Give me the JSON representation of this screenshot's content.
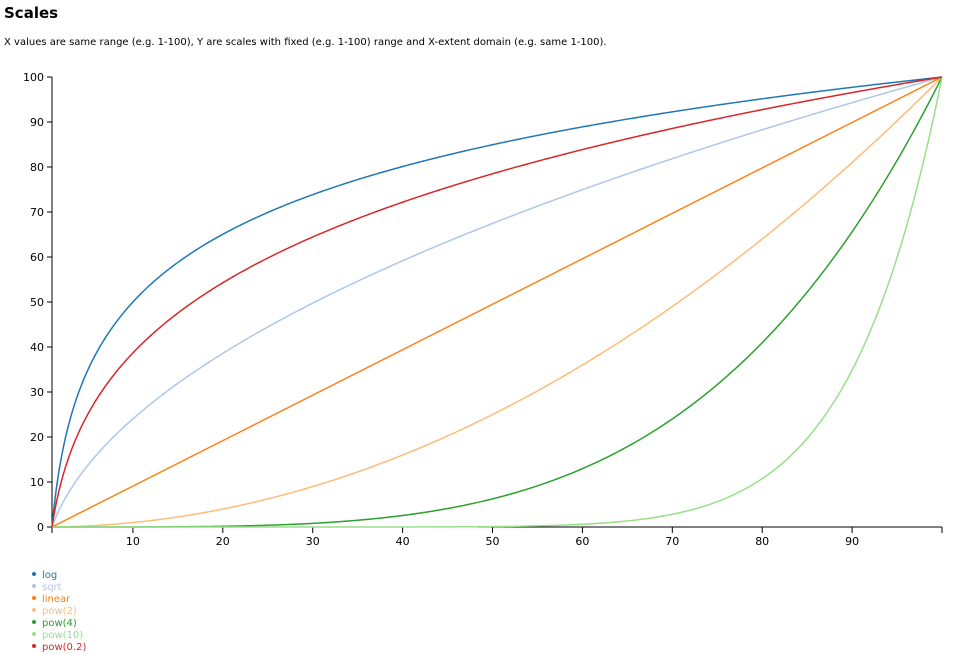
{
  "page": {
    "title": "Scales",
    "description": "X values are same range (e.g. 1-100), Y are scales with fixed (e.g. 1-100) range and X-extent domain (e.g. same 1-100)."
  },
  "chart_data": {
    "type": "line",
    "title": "",
    "xlabel": "",
    "ylabel": "",
    "x_domain": [
      1,
      100
    ],
    "xlim": [
      1,
      100
    ],
    "ylim": [
      0,
      100
    ],
    "x_ticks": [
      10,
      20,
      30,
      40,
      50,
      60,
      70,
      80,
      90
    ],
    "y_ticks": [
      0,
      10,
      20,
      30,
      40,
      50,
      60,
      70,
      80,
      90,
      100
    ],
    "grid": false,
    "legend_position": "bottom-left",
    "series": [
      {
        "name": "log",
        "color": "#1f77b4",
        "scale": "log"
      },
      {
        "name": "sqrt",
        "color": "#aec7e8",
        "scale": "pow",
        "exponent": 0.5
      },
      {
        "name": "linear",
        "color": "#ff7f0e",
        "scale": "linear"
      },
      {
        "name": "pow(2)",
        "color": "#ffbb78",
        "scale": "pow",
        "exponent": 2
      },
      {
        "name": "pow(4)",
        "color": "#2ca02c",
        "scale": "pow",
        "exponent": 4
      },
      {
        "name": "pow(10)",
        "color": "#98df8a",
        "scale": "pow",
        "exponent": 10
      },
      {
        "name": "pow(0.2)",
        "color": "#d62728",
        "scale": "pow",
        "exponent": 0.2
      }
    ]
  }
}
